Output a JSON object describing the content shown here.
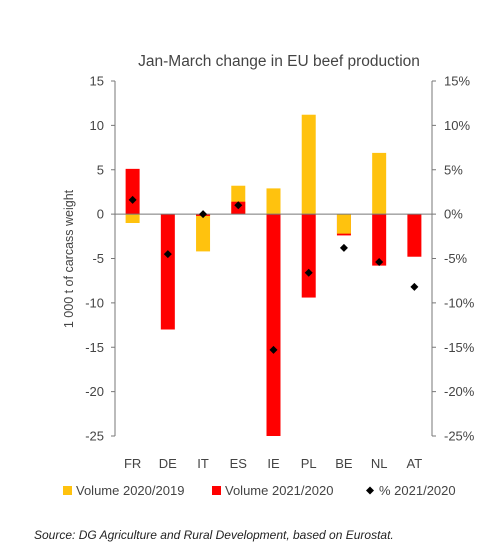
{
  "chart_data": {
    "type": "bar",
    "title": "Jan-March change in EU beef production",
    "ylabel": "1 000 t of carcass weight",
    "categories": [
      "FR",
      "DE",
      "IT",
      "ES",
      "IE",
      "PL",
      "BE",
      "NL",
      "AT"
    ],
    "ylim": [
      -25,
      15
    ],
    "y_ticks": [
      15,
      10,
      5,
      0,
      -5,
      -10,
      -15,
      -20,
      -25
    ],
    "y_tick_labels": [
      "15",
      "10",
      "5",
      "0",
      "-5",
      "-10",
      "-15",
      "-20",
      "-25"
    ],
    "y2lim": [
      -0.25,
      0.15
    ],
    "y2_ticks": [
      0.15,
      0.1,
      0.05,
      0,
      -0.05,
      -0.1,
      -0.15,
      -0.2,
      -0.25
    ],
    "y2_tick_labels": [
      "15%",
      "10%",
      "5%",
      "0%",
      "-5%",
      "-10%",
      "-15%",
      "-20%",
      "-25%"
    ],
    "series": [
      {
        "name": "Volume 2020/2019",
        "kind": "bar",
        "axis": "left",
        "color": "#FFC20E",
        "values": [
          -1.0,
          0,
          -4.2,
          3.2,
          2.9,
          11.2,
          -2.2,
          6.9,
          0
        ]
      },
      {
        "name": "Volume 2021/2020",
        "kind": "bar",
        "axis": "left",
        "color": "#FF0000",
        "values": [
          5.1,
          -13.0,
          -0.2,
          1.4,
          -25.0,
          -9.4,
          -2.4,
          -5.8,
          -4.8
        ]
      },
      {
        "name": "% 2021/2020",
        "kind": "marker",
        "axis": "right",
        "color": "#000000",
        "values": [
          0.016,
          -0.045,
          0.0,
          0.01,
          -0.153,
          -0.066,
          -0.038,
          -0.054,
          -0.082
        ]
      }
    ],
    "grid": false,
    "legend_position": "bottom"
  },
  "source": "Source: DG Agriculture and Rural Development, based on Eurostat."
}
